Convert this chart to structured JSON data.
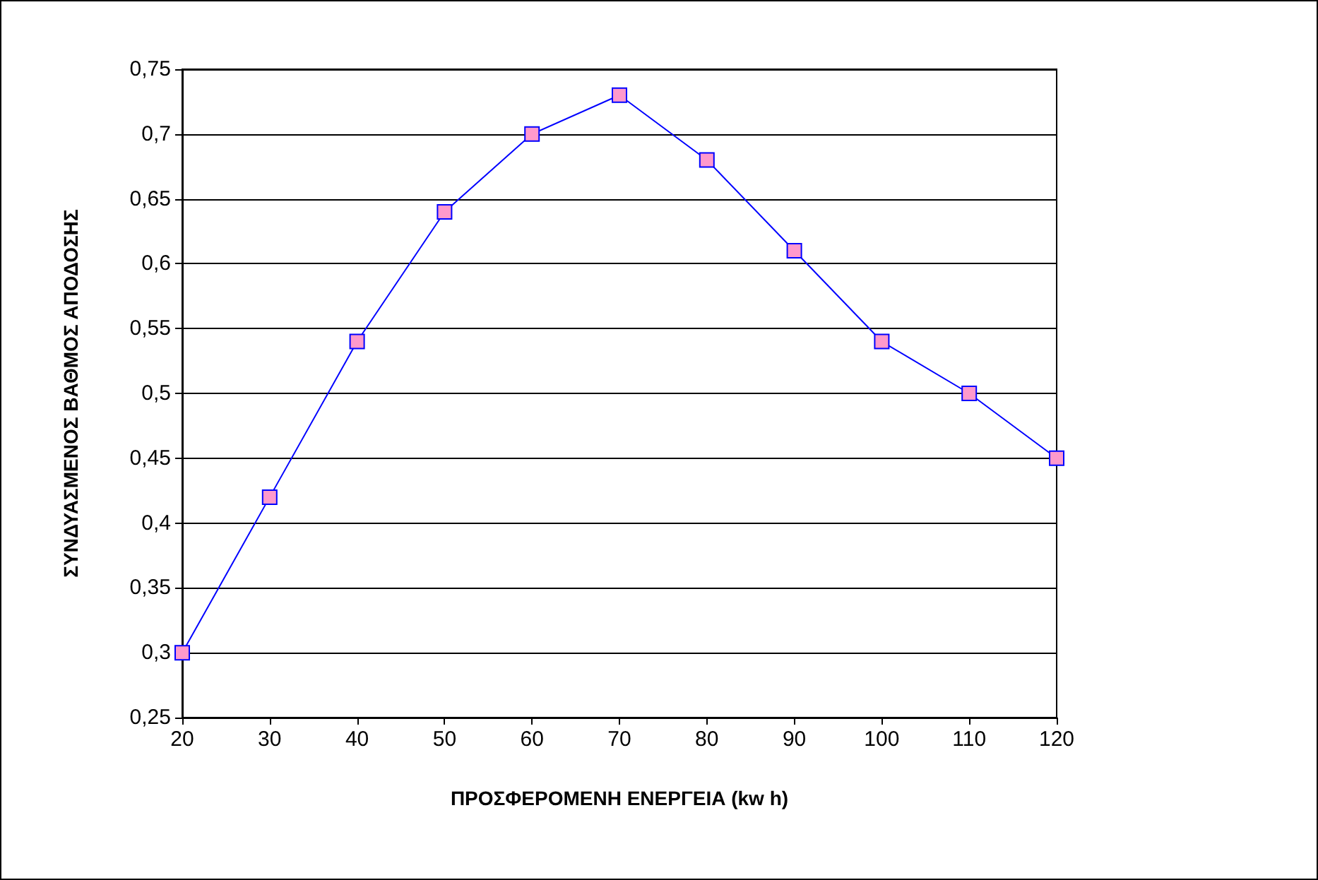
{
  "chart_data": {
    "type": "line",
    "xlabel": "ΠΡΟΣΦΕΡΟΜΕΝΗ ΕΝΕΡΓΕΙΑ (kw h)",
    "ylabel": "ΣΥΝΔΥΑΣΜΕΝΟΣ ΒΑΘΜΟΣ ΑΠΟΔΟΣΗΣ",
    "x": [
      20,
      30,
      40,
      50,
      60,
      70,
      80,
      90,
      100,
      110,
      120
    ],
    "series": [
      {
        "color": "#0000ff",
        "values": [
          0.3,
          0.42,
          0.54,
          0.64,
          0.7,
          0.73,
          0.68,
          0.61,
          0.54,
          0.5,
          0.45
        ]
      }
    ],
    "xlim": [
      20,
      120
    ],
    "xticks": [
      20,
      30,
      40,
      50,
      60,
      70,
      80,
      90,
      100,
      110,
      120
    ],
    "ylim": [
      0.25,
      0.75
    ],
    "yticks": [
      {
        "value": 0.25,
        "label": "0,25"
      },
      {
        "value": 0.3,
        "label": "0,3"
      },
      {
        "value": 0.35,
        "label": "0,35"
      },
      {
        "value": 0.4,
        "label": "0,4"
      },
      {
        "value": 0.45,
        "label": "0,45"
      },
      {
        "value": 0.5,
        "label": "0,5"
      },
      {
        "value": 0.55,
        "label": "0,55"
      },
      {
        "value": 0.6,
        "label": "0,6"
      },
      {
        "value": 0.65,
        "label": "0,65"
      },
      {
        "value": 0.7,
        "label": "0,7"
      },
      {
        "value": 0.75,
        "label": "0,75"
      }
    ],
    "grid": "y",
    "marker": "square",
    "line_style": "solid"
  }
}
